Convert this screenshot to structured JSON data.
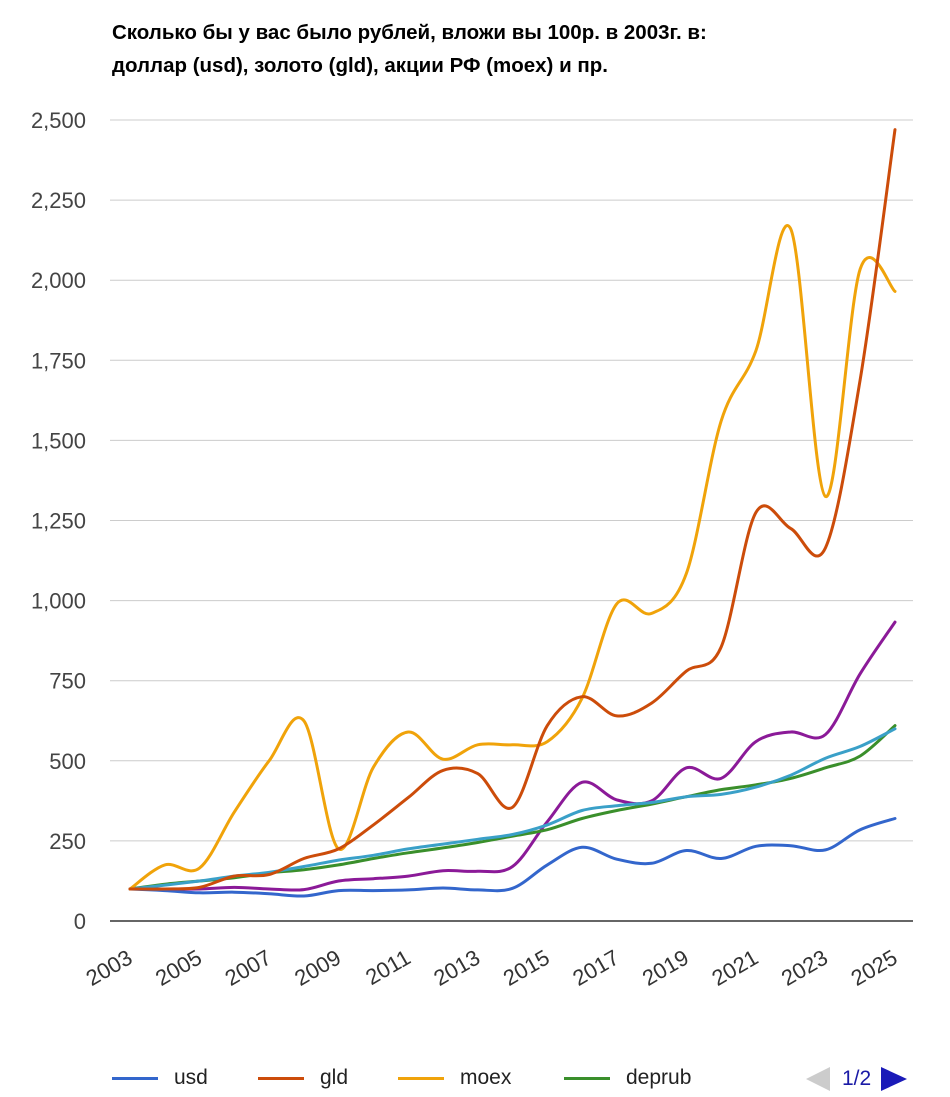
{
  "chart_data": {
    "type": "line",
    "title_lines": [
      "Сколько бы у вас было рублей, вложи вы 100р. в 2003г. в:",
      "доллар (usd), золото (gld), акции РФ (moex) и пр."
    ],
    "x": [
      2003,
      2004,
      2005,
      2006,
      2007,
      2008,
      2009,
      2010,
      2011,
      2012,
      2013,
      2014,
      2015,
      2016,
      2017,
      2018,
      2019,
      2020,
      2021,
      2022,
      2023,
      2024,
      2025
    ],
    "x_tick_labels": [
      "2003",
      "2005",
      "2007",
      "2009",
      "2011",
      "2013",
      "2015",
      "2017",
      "2019",
      "2021",
      "2023",
      "2025"
    ],
    "y_tick_values": [
      0,
      250,
      500,
      750,
      1000,
      1250,
      1500,
      1750,
      2000,
      2250,
      2500
    ],
    "y_tick_labels": [
      "0",
      "250",
      "500",
      "750",
      "1,000",
      "1,250",
      "1,500",
      "1,750",
      "2,000",
      "2,250",
      "2,500"
    ],
    "ylim": [
      0,
      2500
    ],
    "xlabel": "",
    "ylabel": "",
    "grid": true,
    "legend_position": "bottom",
    "series": [
      {
        "name": "usd",
        "color": "#3366cc",
        "in_legend": true,
        "values": [
          100,
          95,
          88,
          90,
          85,
          78,
          95,
          95,
          97,
          103,
          97,
          102,
          175,
          230,
          193,
          180,
          220,
          195,
          233,
          235,
          222,
          285,
          320
        ]
      },
      {
        "name": "gld",
        "color": "#cc4c0a",
        "in_legend": true,
        "values": [
          100,
          100,
          105,
          140,
          145,
          195,
          225,
          300,
          385,
          470,
          460,
          355,
          610,
          700,
          640,
          680,
          780,
          855,
          1275,
          1225,
          1165,
          1690,
          2470
        ]
      },
      {
        "name": "moex",
        "color": "#f0a30a",
        "in_legend": true,
        "values": [
          100,
          175,
          165,
          340,
          500,
          625,
          225,
          480,
          590,
          505,
          550,
          550,
          560,
          695,
          990,
          960,
          1085,
          1560,
          1780,
          2160,
          1325,
          2035,
          1965
        ]
      },
      {
        "name": "deprub",
        "color": "#3a8f2b",
        "in_legend": true,
        "values": [
          100,
          115,
          125,
          135,
          150,
          160,
          175,
          195,
          213,
          228,
          245,
          265,
          285,
          320,
          345,
          365,
          388,
          410,
          425,
          445,
          478,
          515,
          610
        ]
      },
      {
        "name": "",
        "color": "#8b1a98",
        "in_legend": false,
        "values": [
          100,
          100,
          100,
          105,
          100,
          98,
          125,
          132,
          140,
          157,
          155,
          170,
          310,
          433,
          378,
          375,
          478,
          445,
          560,
          590,
          582,
          772,
          933
        ]
      },
      {
        "name": "",
        "color": "#3aa0c8",
        "in_legend": false,
        "values": [
          100,
          112,
          125,
          140,
          152,
          170,
          190,
          205,
          225,
          240,
          255,
          270,
          300,
          345,
          360,
          370,
          388,
          395,
          418,
          455,
          508,
          545,
          600
        ]
      }
    ]
  },
  "legend": [
    {
      "label": "usd",
      "color": "#3366cc"
    },
    {
      "label": "gld",
      "color": "#cc4c0a"
    },
    {
      "label": "moex",
      "color": "#f0a30a"
    },
    {
      "label": "deprub",
      "color": "#3a8f2b"
    }
  ],
  "pager": {
    "text": "1/2"
  }
}
